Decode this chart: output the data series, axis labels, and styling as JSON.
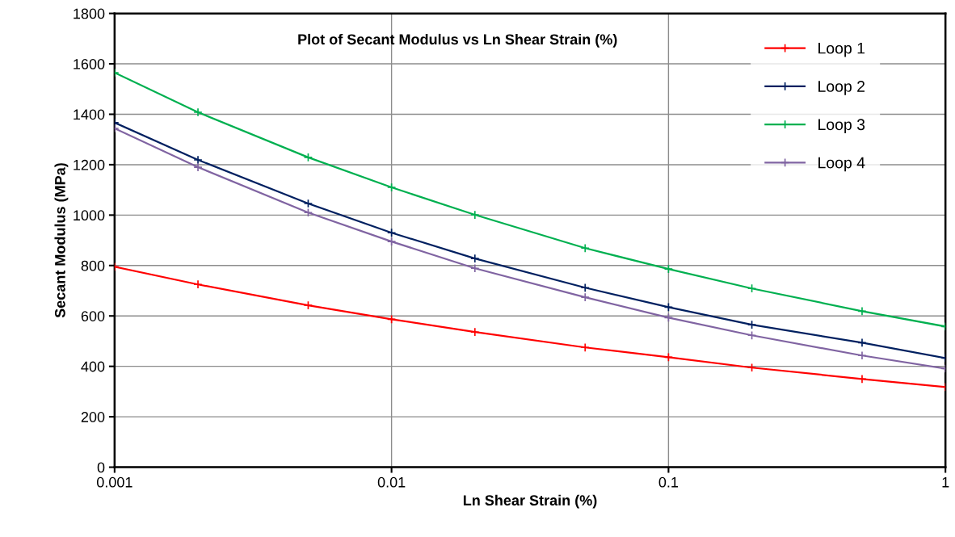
{
  "chart_data": {
    "type": "line",
    "title": "Plot of Secant Modulus vs Ln Shear Strain (%)",
    "xlabel": "Ln Shear Strain (%)",
    "ylabel": "Secant Modulus (MPa)",
    "x": [
      0.001,
      0.002,
      0.005,
      0.01,
      0.02,
      0.05,
      0.1,
      0.2,
      0.5,
      1
    ],
    "series": [
      {
        "name": "Loop 1",
        "color": "#ff0000",
        "values": [
          795,
          725,
          642,
          587,
          536,
          475,
          436,
          395,
          350,
          318
        ]
      },
      {
        "name": "Loop 2",
        "color": "#002060",
        "values": [
          1367,
          1219,
          1046,
          930,
          828,
          712,
          635,
          565,
          494,
          433
        ]
      },
      {
        "name": "Loop 3",
        "color": "#00b050",
        "values": [
          1565,
          1408,
          1229,
          1110,
          1001,
          869,
          786,
          709,
          619,
          558
        ]
      },
      {
        "name": "Loop 4",
        "color": "#8064a2",
        "values": [
          1344,
          1190,
          1010,
          895,
          789,
          674,
          593,
          523,
          443,
          391
        ]
      }
    ],
    "log": "x",
    "xlim": [
      0.001,
      1
    ],
    "xticks": [
      0.001,
      0.01,
      0.1,
      1
    ],
    "ylim": [
      0,
      1800
    ],
    "yticks": [
      0,
      200,
      400,
      600,
      800,
      1000,
      1200,
      1400,
      1600,
      1800
    ],
    "grid": true,
    "legend": "top right",
    "marker": "cross",
    "line_style": "solid"
  }
}
